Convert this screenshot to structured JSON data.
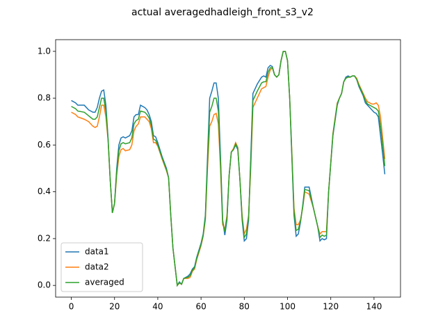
{
  "chart_data": {
    "type": "line",
    "title": "actual averagedhadleigh_front_s3_v2",
    "x": [
      0,
      2,
      3,
      6,
      8,
      10,
      11,
      12,
      13,
      14,
      15,
      16,
      17,
      18,
      19,
      20,
      21,
      22,
      23,
      24,
      25,
      27,
      28,
      29,
      30,
      31,
      32,
      34,
      35,
      36,
      37,
      38,
      39,
      40,
      42,
      44,
      45,
      46,
      47,
      48,
      49,
      50,
      51,
      52,
      54,
      55,
      56,
      57,
      58,
      60,
      61,
      62,
      63,
      64,
      65,
      66,
      67,
      68,
      69,
      70,
      71,
      72,
      73,
      74,
      75,
      76,
      77,
      78,
      79,
      80,
      81,
      82,
      83,
      84,
      86,
      88,
      89,
      90,
      91,
      92,
      93,
      94,
      95,
      96,
      97,
      98,
      99,
      100,
      101,
      102,
      103,
      104,
      105,
      106,
      107,
      108,
      110,
      112,
      114,
      115,
      116,
      117,
      118,
      119,
      121,
      123,
      124,
      125,
      126,
      127,
      128,
      129,
      130,
      131,
      132,
      133,
      135,
      136,
      137,
      138,
      139,
      140,
      141,
      142,
      143,
      144,
      145
    ],
    "series": [
      {
        "name": "data1",
        "color": "#1f77b4",
        "values": [
          0.79,
          0.78,
          0.77,
          0.77,
          0.75,
          0.74,
          0.74,
          0.76,
          0.8,
          0.83,
          0.835,
          0.77,
          0.63,
          0.45,
          0.31,
          0.35,
          0.5,
          0.6,
          0.63,
          0.635,
          0.63,
          0.64,
          0.66,
          0.72,
          0.73,
          0.73,
          0.77,
          0.76,
          0.75,
          0.73,
          0.7,
          0.64,
          0.635,
          0.61,
          0.55,
          0.5,
          0.46,
          0.3,
          0.16,
          0.08,
          0.0,
          0.015,
          0.005,
          0.03,
          0.04,
          0.05,
          0.07,
          0.08,
          0.12,
          0.18,
          0.22,
          0.3,
          0.55,
          0.8,
          0.83,
          0.865,
          0.865,
          0.8,
          0.55,
          0.28,
          0.215,
          0.28,
          0.47,
          0.57,
          0.58,
          0.6,
          0.58,
          0.45,
          0.28,
          0.19,
          0.2,
          0.28,
          0.55,
          0.82,
          0.86,
          0.89,
          0.895,
          0.89,
          0.93,
          0.94,
          0.935,
          0.9,
          0.89,
          0.9,
          0.96,
          1.0,
          1.0,
          0.96,
          0.8,
          0.55,
          0.3,
          0.21,
          0.22,
          0.27,
          0.34,
          0.42,
          0.42,
          0.33,
          0.25,
          0.19,
          0.2,
          0.195,
          0.2,
          0.4,
          0.64,
          0.77,
          0.8,
          0.82,
          0.87,
          0.89,
          0.895,
          0.89,
          0.895,
          0.895,
          0.88,
          0.85,
          0.81,
          0.78,
          0.77,
          0.76,
          0.75,
          0.74,
          0.735,
          0.72,
          0.64,
          0.56,
          0.475
        ]
      },
      {
        "name": "data2",
        "color": "#ff7f0e",
        "values": [
          0.74,
          0.73,
          0.72,
          0.71,
          0.7,
          0.68,
          0.675,
          0.68,
          0.72,
          0.77,
          0.77,
          0.72,
          0.62,
          0.45,
          0.31,
          0.35,
          0.47,
          0.55,
          0.58,
          0.585,
          0.575,
          0.58,
          0.6,
          0.66,
          0.68,
          0.69,
          0.72,
          0.72,
          0.71,
          0.7,
          0.67,
          0.61,
          0.61,
          0.595,
          0.54,
          0.49,
          0.46,
          0.3,
          0.16,
          0.08,
          0.0,
          0.01,
          0.005,
          0.03,
          0.03,
          0.035,
          0.06,
          0.07,
          0.11,
          0.17,
          0.21,
          0.28,
          0.5,
          0.68,
          0.7,
          0.73,
          0.735,
          0.69,
          0.5,
          0.26,
          0.24,
          0.3,
          0.47,
          0.57,
          0.585,
          0.61,
          0.59,
          0.45,
          0.3,
          0.22,
          0.24,
          0.3,
          0.5,
          0.76,
          0.8,
          0.84,
          0.845,
          0.85,
          0.89,
          0.92,
          0.93,
          0.9,
          0.89,
          0.9,
          0.96,
          1.0,
          1.0,
          0.96,
          0.8,
          0.57,
          0.33,
          0.26,
          0.26,
          0.28,
          0.33,
          0.4,
          0.39,
          0.33,
          0.25,
          0.22,
          0.23,
          0.23,
          0.23,
          0.4,
          0.65,
          0.78,
          0.8,
          0.82,
          0.87,
          0.885,
          0.89,
          0.89,
          0.895,
          0.895,
          0.885,
          0.86,
          0.82,
          0.8,
          0.785,
          0.78,
          0.775,
          0.775,
          0.78,
          0.77,
          0.72,
          0.63,
          0.54
        ]
      },
      {
        "name": "averaged",
        "color": "#2ca02c",
        "values": [
          0.765,
          0.755,
          0.745,
          0.74,
          0.725,
          0.71,
          0.71,
          0.72,
          0.76,
          0.8,
          0.8,
          0.745,
          0.625,
          0.45,
          0.31,
          0.35,
          0.485,
          0.575,
          0.605,
          0.61,
          0.605,
          0.61,
          0.63,
          0.69,
          0.705,
          0.71,
          0.745,
          0.74,
          0.73,
          0.715,
          0.685,
          0.625,
          0.62,
          0.6,
          0.545,
          0.495,
          0.46,
          0.3,
          0.16,
          0.08,
          0.0,
          0.012,
          0.005,
          0.03,
          0.035,
          0.042,
          0.065,
          0.075,
          0.115,
          0.175,
          0.215,
          0.29,
          0.525,
          0.74,
          0.765,
          0.8,
          0.8,
          0.745,
          0.525,
          0.27,
          0.23,
          0.29,
          0.47,
          0.57,
          0.58,
          0.605,
          0.585,
          0.45,
          0.29,
          0.205,
          0.22,
          0.29,
          0.525,
          0.79,
          0.83,
          0.865,
          0.87,
          0.87,
          0.91,
          0.93,
          0.93,
          0.9,
          0.89,
          0.9,
          0.96,
          1.0,
          1.0,
          0.96,
          0.8,
          0.56,
          0.315,
          0.235,
          0.24,
          0.275,
          0.335,
          0.41,
          0.405,
          0.33,
          0.25,
          0.205,
          0.215,
          0.21,
          0.215,
          0.4,
          0.645,
          0.775,
          0.8,
          0.82,
          0.87,
          0.885,
          0.89,
          0.89,
          0.895,
          0.895,
          0.88,
          0.855,
          0.815,
          0.79,
          0.775,
          0.77,
          0.765,
          0.76,
          0.755,
          0.745,
          0.68,
          0.6,
          0.51
        ]
      }
    ],
    "xlim": [
      -7.25,
      152.25
    ],
    "xticks": [
      0,
      20,
      40,
      60,
      80,
      100,
      120,
      140
    ],
    "ylim": [
      -0.05,
      1.05
    ],
    "yticks": [
      {
        "value": 0,
        "label": "0.0"
      },
      0.2,
      0.4,
      0.6,
      0.8,
      {
        "value": 1,
        "label": "1.0"
      }
    ],
    "legend": "lower left"
  }
}
